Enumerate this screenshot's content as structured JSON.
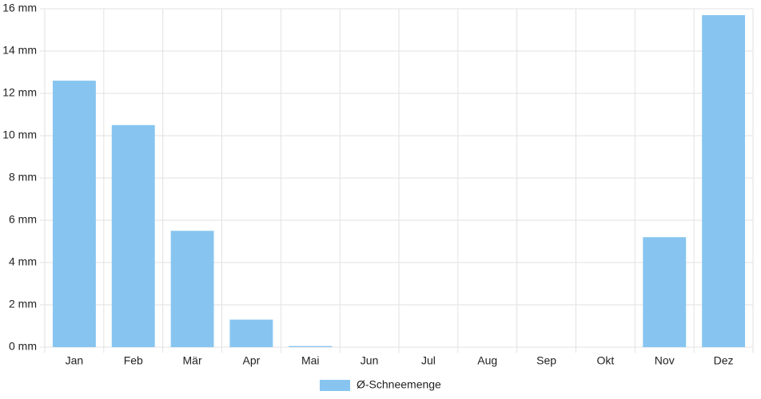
{
  "chart_data": {
    "type": "bar",
    "categories": [
      "Jan",
      "Feb",
      "Mär",
      "Apr",
      "Mai",
      "Jun",
      "Jul",
      "Aug",
      "Sep",
      "Okt",
      "Nov",
      "Dez"
    ],
    "series": [
      {
        "name": "Ø-Schneemenge",
        "color": "#87c5f0",
        "values": [
          12.6,
          10.5,
          5.5,
          1.3,
          0.05,
          0,
          0,
          0,
          0,
          0,
          5.2,
          15.7
        ]
      }
    ],
    "ylim": [
      0,
      16
    ],
    "yticks": [
      {
        "value": 0,
        "label": "0 mm"
      },
      {
        "value": 2,
        "label": "2 mm"
      },
      {
        "value": 4,
        "label": "4 mm"
      },
      {
        "value": 6,
        "label": "6 mm"
      },
      {
        "value": 8,
        "label": "8 mm"
      },
      {
        "value": 10,
        "label": "10 mm"
      },
      {
        "value": 12,
        "label": "12 mm"
      },
      {
        "value": 14,
        "label": "14 mm"
      },
      {
        "value": 16,
        "label": "16 mm"
      }
    ],
    "grid": true,
    "legend": "bottom"
  }
}
